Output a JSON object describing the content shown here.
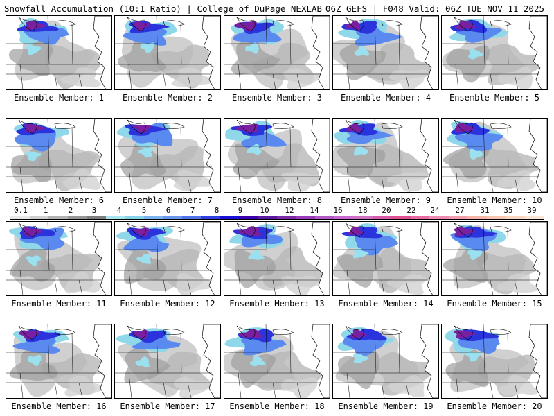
{
  "header": {
    "left": "Snowfall Accumulation (10:1 Ratio) | College of DuPage NEXLAB",
    "right": "06Z GEFS | F048 Valid: 06Z TUE NOV 11 2025"
  },
  "panels": [
    {
      "label": "Ensemble Member: 1"
    },
    {
      "label": "Ensemble Member: 2"
    },
    {
      "label": "Ensemble Member: 3"
    },
    {
      "label": "Ensemble Member: 4"
    },
    {
      "label": "Ensemble Member: 5"
    },
    {
      "label": "Ensemble Member: 6"
    },
    {
      "label": "Ensemble Member: 7"
    },
    {
      "label": "Ensemble Member: 8"
    },
    {
      "label": "Ensemble Member: 9"
    },
    {
      "label": "Ensemble Member: 10"
    },
    {
      "label": "Ensemble Member: 11"
    },
    {
      "label": "Ensemble Member: 12"
    },
    {
      "label": "Ensemble Member: 13"
    },
    {
      "label": "Ensemble Member: 14"
    },
    {
      "label": "Ensemble Member: 15"
    },
    {
      "label": "Ensemble Member: 16"
    },
    {
      "label": "Ensemble Member: 17"
    },
    {
      "label": "Ensemble Member: 18"
    },
    {
      "label": "Ensemble Member: 19"
    },
    {
      "label": "Ensemble Member: 20"
    }
  ],
  "colorbar": {
    "ticks": [
      "0.1",
      "1",
      "2",
      "3",
      "4",
      "5",
      "6",
      "7",
      "8",
      "9",
      "10",
      "12",
      "14",
      "16",
      "18",
      "20",
      "22",
      "24",
      "27",
      "31",
      "35",
      "39"
    ],
    "colors": [
      "#e8e8e8",
      "#cfcfcf",
      "#b3b3b3",
      "#979797",
      "#7e7e7e",
      "#a8e6ef",
      "#86d4ea",
      "#7cb4f0",
      "#6a96ee",
      "#4f72e8",
      "#2f3fe0",
      "#1a10d8",
      "#3a00b0",
      "#5a1aa0",
      "#7a2aa8",
      "#9a3ab8",
      "#b05ac6",
      "#c86ad0",
      "#d070c0",
      "#d85aa8",
      "#e05090",
      "#e86aa0",
      "#ee8ab4",
      "#f2a0b0",
      "#f4b4a8",
      "#f6c6b0",
      "#f8d6c0",
      "#fae6d4"
    ]
  }
}
